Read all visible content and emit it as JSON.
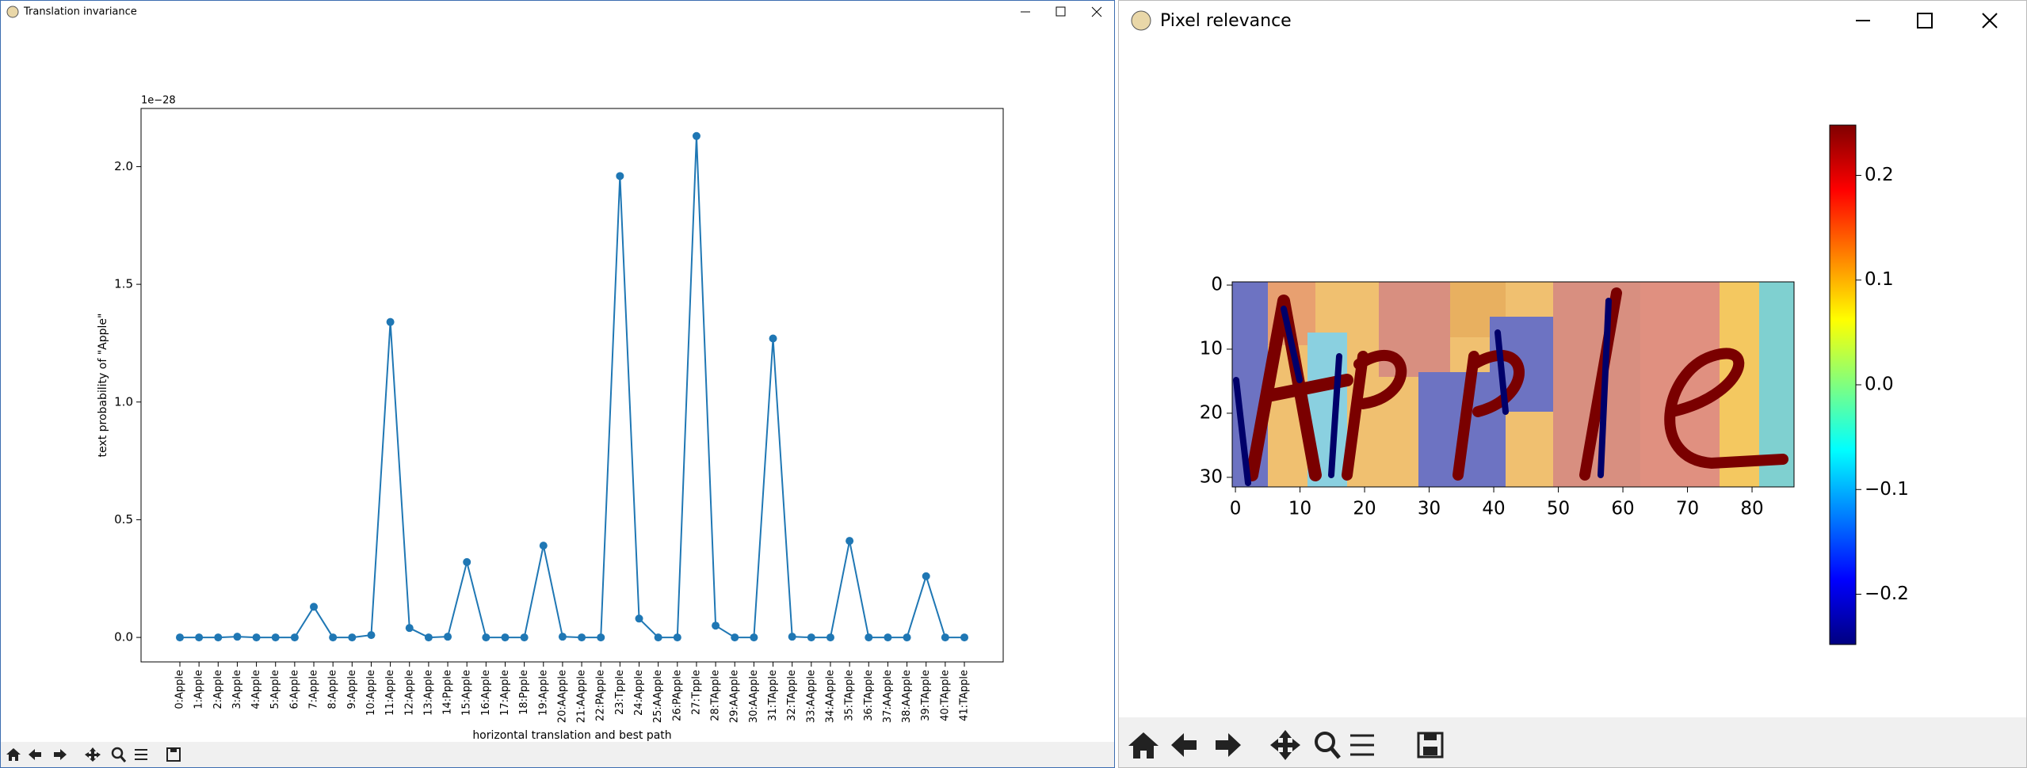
{
  "left_window": {
    "title": "Translation invariance"
  },
  "right_window": {
    "title": "Pixel relevance"
  },
  "chart_data": [
    {
      "type": "line",
      "offset_label": "1e−28",
      "x_label": "horizontal translation and best path",
      "y_label": "text probability of \"Apple\"",
      "color": "#1f77b4",
      "categories": [
        "0:Apple",
        "1:Apple",
        "2:Apple",
        "3:Apple",
        "4:Apple",
        "5:Apple",
        "6:Apple",
        "7:Apple",
        "8:Apple",
        "9:Apple",
        "10:Apple",
        "11:Apple",
        "12:Apple",
        "13:Apple",
        "14:Ppple",
        "15:Apple",
        "16:Apple",
        "17:Apple",
        "18:Ppple",
        "19:Apple",
        "20:AApple",
        "21:AApple",
        "22:PApple",
        "23:Tpple",
        "24:Apple",
        "25:AApple",
        "26:PApple",
        "27:Tpple",
        "28:TApple",
        "29:AApple",
        "30:AApple",
        "31:TApple",
        "32:TApple",
        "33:AApple",
        "34:AApple",
        "35:TApple",
        "36:TApple",
        "37:AApple",
        "38:AApple",
        "39:TApple",
        "40:TApple",
        "41:TApple"
      ],
      "values": [
        0,
        0,
        0,
        0.003,
        0,
        0,
        0,
        0.13,
        0,
        0,
        0.01,
        1.34,
        0.04,
        0,
        0.003,
        0.32,
        0,
        0,
        0,
        0.39,
        0.003,
        0,
        0,
        1.96,
        0.08,
        0,
        0,
        2.13,
        0.05,
        0,
        0,
        1.27,
        0.003,
        0,
        0,
        0.41,
        0,
        0,
        0,
        0.26,
        0,
        0
      ],
      "ylim": [
        -0.104,
        2.247
      ],
      "yticks": [
        {
          "value": 0,
          "label": "0.0"
        },
        0.5,
        {
          "value": 1,
          "label": "1.0"
        },
        1.5,
        {
          "value": 2,
          "label": "2.0"
        }
      ]
    },
    {
      "type": "heatmap",
      "colormap": "jet",
      "xlim": [
        -0.5,
        86.5
      ],
      "ylim": [
        31.5,
        -0.5
      ],
      "xticks": [
        0,
        10,
        20,
        30,
        40,
        50,
        60,
        70,
        80
      ],
      "yticks": [
        0,
        10,
        20,
        30
      ],
      "clim": [
        -0.248,
        0.248
      ],
      "cticks": [
        {
          "value": 0.2,
          "label": "0.2"
        },
        {
          "value": 0.1,
          "label": "0.1"
        },
        {
          "value": 0,
          "label": "0.0"
        },
        {
          "value": -0.1,
          "label": "−0.1"
        },
        {
          "value": -0.2,
          "label": "−0.2"
        }
      ]
    }
  ]
}
